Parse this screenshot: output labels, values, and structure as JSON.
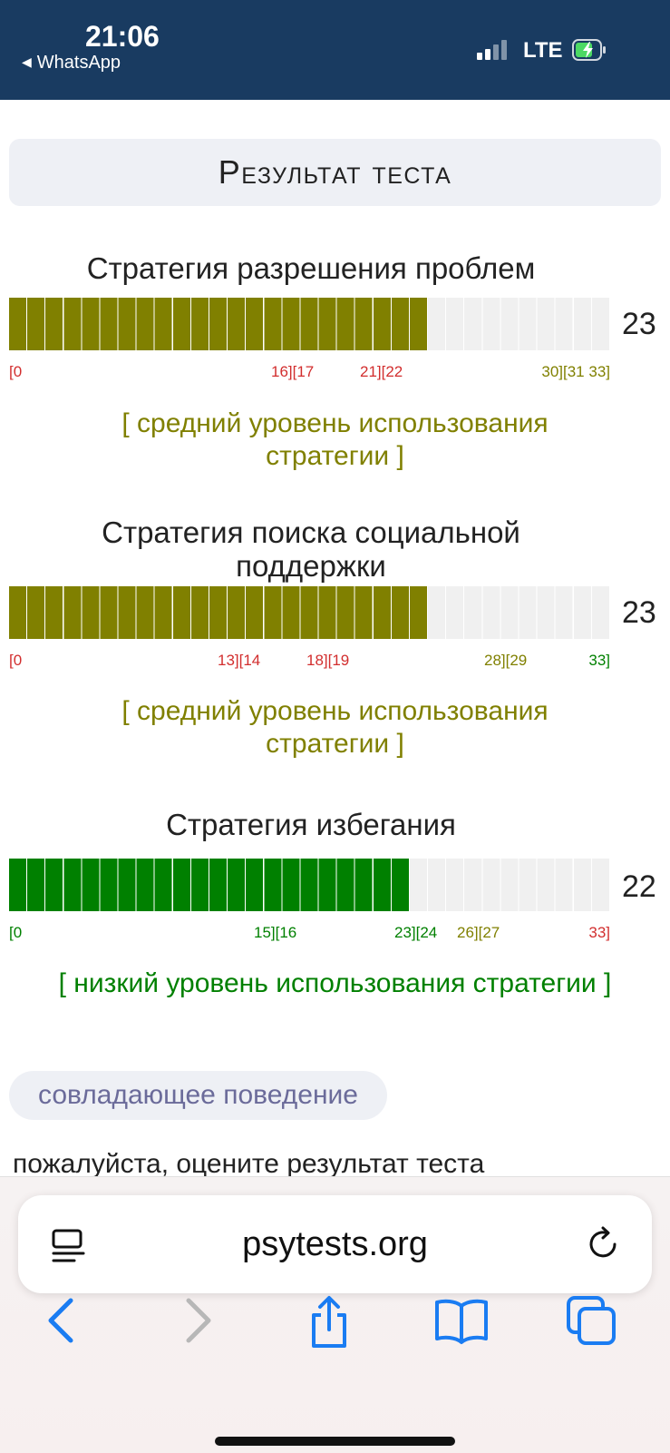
{
  "status_bar": {
    "time": "21:06",
    "back_app": "WhatsApp",
    "network": "LTE",
    "icons": [
      "signal-bars-icon",
      "battery-charging-icon",
      "back-triangle-icon"
    ]
  },
  "page": {
    "title": "Результат теста"
  },
  "sections": [
    {
      "title": "Стратегия разрешения проблем",
      "score": "23",
      "max": 33,
      "fill_color": "#808000",
      "scale_labels": [
        {
          "text": "[0",
          "color": "#d22e2e"
        },
        {
          "text": "16][17",
          "color": "#d22e2e"
        },
        {
          "text": "21][22",
          "color": "#d22e2e"
        },
        {
          "text": "30][31 33]",
          "color": "#808000"
        }
      ],
      "verdict": "[ средний уровень использования стратегии ]",
      "verdict_color": "#808000"
    },
    {
      "title": "Стратегия поиска социальной поддержки",
      "score": "23",
      "max": 33,
      "fill_color": "#808000",
      "scale_labels": [
        {
          "text": "[0",
          "color": "#d22e2e"
        },
        {
          "text": "13][14",
          "color": "#d22e2e"
        },
        {
          "text": "18][19",
          "color": "#d22e2e"
        },
        {
          "text": "28][29",
          "color": "#808000"
        },
        {
          "text": "33]",
          "color": "#008000"
        }
      ],
      "verdict": "[ средний уровень использования стратегии ]",
      "verdict_color": "#808000"
    },
    {
      "title": "Стратегия избегания",
      "score": "22",
      "max": 33,
      "fill_color": "#008000",
      "scale_labels": [
        {
          "text": "[0",
          "color": "#008000"
        },
        {
          "text": "15][16",
          "color": "#008000"
        },
        {
          "text": "23][24",
          "color": "#008000"
        },
        {
          "text": "26][27",
          "color": "#808000"
        },
        {
          "text": "33]",
          "color": "#d22e2e"
        }
      ],
      "verdict": "[ низкий уровень использования стратегии ]",
      "verdict_color": "#008000"
    }
  ],
  "tag": "совладающее поведение",
  "cutoff_text": "пожалуйста, оцените результат теста",
  "browser": {
    "url": "psytests.org",
    "icons": [
      "reader-mode-icon",
      "reload-icon",
      "back-icon",
      "forward-icon",
      "share-icon",
      "bookmarks-icon",
      "tabs-icon"
    ]
  }
}
